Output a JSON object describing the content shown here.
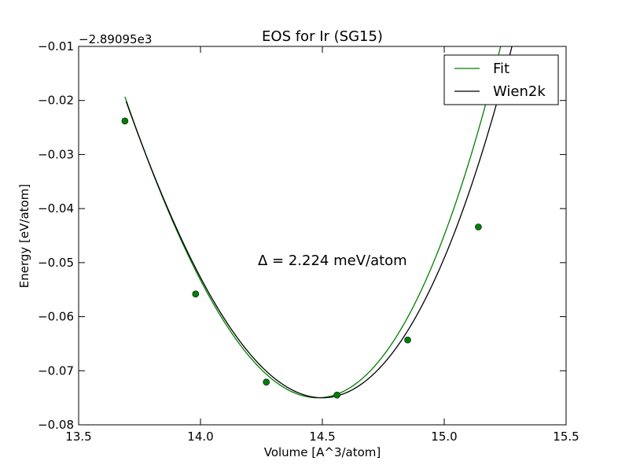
{
  "chart_data": {
    "type": "line",
    "title": "EOS for Ir (SG15)",
    "xlabel": "Volume [A^3/atom]",
    "ylabel": "Energy [eV/atom]",
    "y_offset_label": "−2.89095e3",
    "annotation": "Δ = 2.224 meV/atom",
    "xlim": [
      13.5,
      15.5
    ],
    "ylim": [
      -0.08,
      -0.01
    ],
    "xticks": [
      13.5,
      14.0,
      14.5,
      15.0,
      15.5
    ],
    "xtick_labels": [
      "13.5",
      "14.0",
      "14.5",
      "15.0",
      "15.5"
    ],
    "yticks": [
      -0.08,
      -0.07,
      -0.06,
      -0.05,
      -0.04,
      -0.03,
      -0.02,
      -0.01
    ],
    "ytick_labels": [
      "−0.08",
      "−0.07",
      "−0.06",
      "−0.05",
      "−0.04",
      "−0.03",
      "−0.02",
      "−0.01"
    ],
    "grid": false,
    "legend_position": "top-right",
    "series": [
      {
        "name": "Fit",
        "color": "#008000",
        "kind": "curve",
        "x0": 14.48,
        "y0": -0.075,
        "a": 0.1025,
        "b": 0.0168,
        "x_range": [
          13.69,
          15.44
        ]
      },
      {
        "name": "Wien2k",
        "color": "#000000",
        "kind": "curve",
        "x0": 14.5,
        "y0": -0.075,
        "a": 0.0962,
        "b": 0.0144,
        "x_range": [
          13.695,
          15.47
        ]
      }
    ],
    "points": {
      "color": "#008000",
      "x": [
        13.69,
        13.98,
        14.27,
        14.56,
        14.85,
        15.14
      ],
      "y": [
        -0.0238,
        -0.0558,
        -0.0721,
        -0.0745,
        -0.0643,
        -0.0434
      ]
    }
  }
}
